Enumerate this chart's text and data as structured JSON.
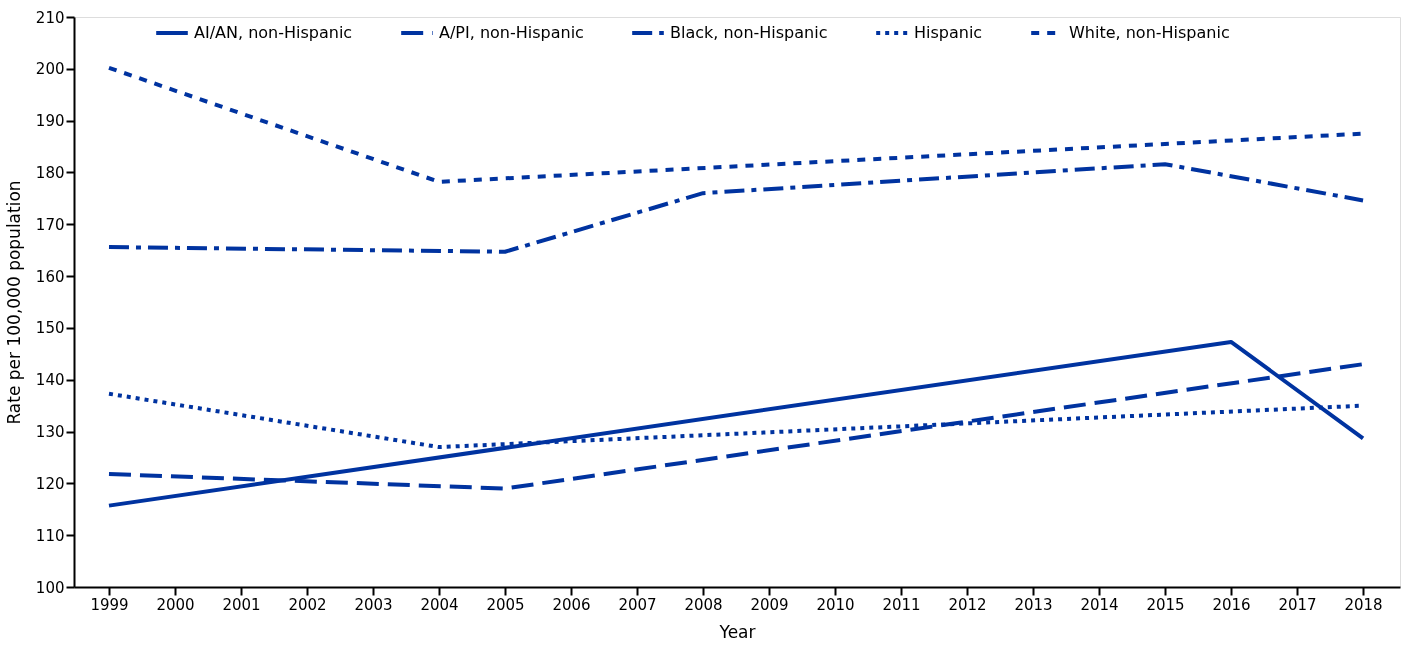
{
  "chart_data": {
    "type": "line",
    "xlabel": "Year",
    "ylabel": "Rate per 100,000 population",
    "xlim": [
      1998.47,
      2018.56
    ],
    "xticks": [
      1999,
      2000,
      2001,
      2002,
      2003,
      2004,
      2005,
      2006,
      2007,
      2008,
      2009,
      2010,
      2011,
      2012,
      2013,
      2014,
      2015,
      2016,
      2017,
      2018
    ],
    "ylim": [
      100,
      210
    ],
    "yticks": [
      100,
      110,
      120,
      130,
      140,
      150,
      160,
      170,
      180,
      190,
      200,
      210
    ],
    "grid": false,
    "legend": "top",
    "marker": "none",
    "series": [
      {
        "name": "AI/AN, non-Hispanic",
        "color": "#0033a0",
        "line_style": "solid",
        "x": [
          1999,
          2016,
          2018
        ],
        "values": [
          115.7,
          147.3,
          128.7
        ]
      },
      {
        "name": "A/PI, non-Hispanic",
        "color": "#0033a0",
        "line_style": "dashed",
        "x": [
          1999,
          2005,
          2018
        ],
        "values": [
          121.8,
          119.0,
          143.0
        ]
      },
      {
        "name": "Black, non-Hispanic",
        "color": "#0033a0",
        "line_style": "dashdot",
        "x": [
          1999,
          2005,
          2008,
          2015,
          2018
        ],
        "values": [
          165.6,
          164.7,
          176.0,
          181.6,
          174.6
        ]
      },
      {
        "name": "Hispanic",
        "color": "#0033a0",
        "line_style": "dotted",
        "x": [
          1999,
          2004,
          2018
        ],
        "values": [
          137.3,
          127.0,
          135.0
        ]
      },
      {
        "name": "White, non-Hispanic",
        "color": "#0033a0",
        "line_style": "dashed_short",
        "x": [
          1999,
          2004,
          2018
        ],
        "values": [
          200.2,
          178.2,
          187.5
        ]
      }
    ]
  }
}
